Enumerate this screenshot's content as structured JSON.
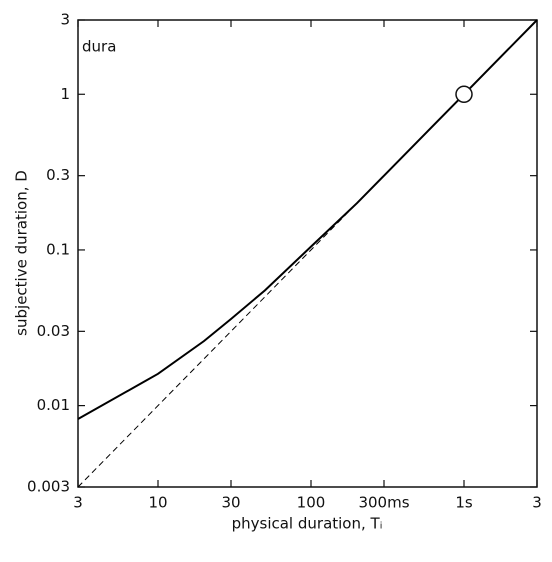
{
  "chart_data": {
    "type": "line",
    "xlabel": "physical duration, Tᵢ",
    "ylabel": "subjective duration, D",
    "annotation": "dura",
    "log_x": true,
    "log_y": true,
    "xlim": [
      3,
      3000
    ],
    "ylim": [
      0.003,
      3
    ],
    "xticks": [
      3,
      10,
      30,
      100,
      {
        "value": 300,
        "label": "300ms"
      },
      {
        "value": 1000,
        "label": "1s"
      },
      {
        "value": 3000,
        "label": "3"
      }
    ],
    "yticks": [
      0.003,
      0.01,
      0.03,
      0.1,
      0.3,
      1,
      3
    ],
    "series": [
      {
        "color": "#000000",
        "style": "solid",
        "x": [
          3,
          10,
          20,
          30,
          50,
          100,
          200,
          300,
          1000,
          3000
        ],
        "values": [
          0.0082,
          0.016,
          0.026,
          0.036,
          0.055,
          0.105,
          0.2,
          0.3,
          1,
          3
        ]
      },
      {
        "color": "#000000",
        "style": "dashed",
        "x": [
          3,
          3000
        ],
        "values": [
          0.003,
          3
        ]
      }
    ],
    "points": [
      {
        "x": 1000,
        "y": 1
      }
    ]
  }
}
